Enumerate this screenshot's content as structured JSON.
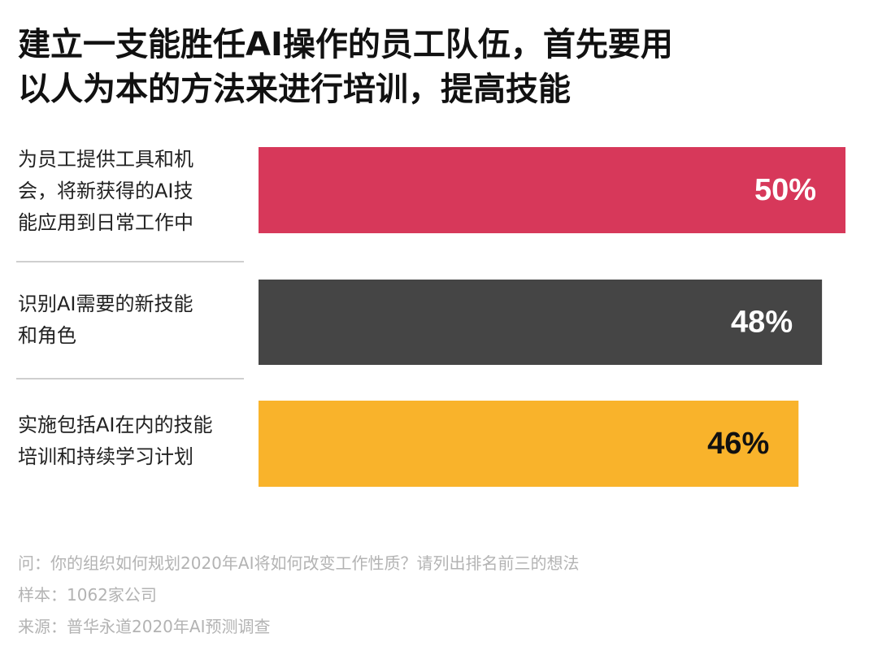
{
  "title": {
    "lines": [
      "建立一支能胜任AI操作的员工队伍，首先要用",
      "以人为本的方法来进行培训，提高技能"
    ]
  },
  "chart_data": {
    "type": "bar",
    "orientation": "horizontal",
    "categories": [
      [
        "为员工提供工具和机",
        "会，将新获得的AI技",
        "能应用到日常工作中"
      ],
      [
        "识别AI需要的新技能",
        "和角色"
      ],
      [
        "实施包括AI在内的技能",
        "培训和持续学习计划"
      ]
    ],
    "values": [
      50,
      48,
      46
    ],
    "value_labels": [
      "50%",
      "48%",
      "46%"
    ],
    "bar_colors": [
      "#d7385a",
      "#454545",
      "#f9b32b"
    ],
    "label_colors": [
      "#ffffff",
      "#ffffff",
      "#111111"
    ],
    "xlim": [
      0,
      50
    ],
    "grid": false,
    "legend": "none"
  },
  "footnotes": {
    "question": "问：你的组织如何规划2020年AI将如何改变工作性质？请列出排名前三的想法",
    "sample": "样本：1062家公司",
    "source": "来源：普华永道2020年AI预测调查"
  }
}
